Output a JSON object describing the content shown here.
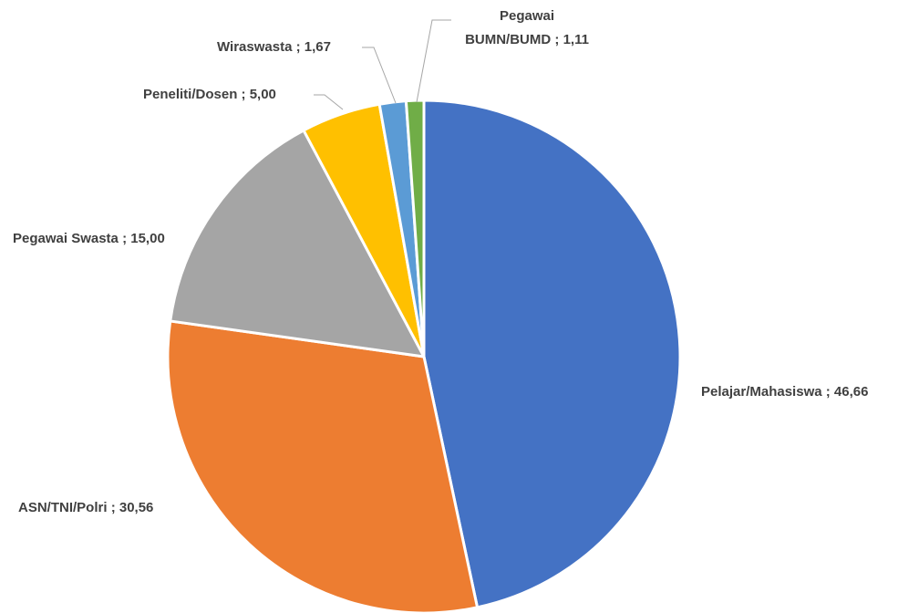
{
  "chart_data": {
    "type": "pie",
    "categories": [
      "Pelajar/Mahasiswa",
      "ASN/TNI/Polri",
      "Pegawai Swasta",
      "Peneliti/Dosen",
      "Wiraswasta",
      "Pegawai BUMN/BUMD"
    ],
    "values": [
      46.66,
      30.56,
      15.0,
      5.0,
      1.67,
      1.11
    ],
    "value_labels": [
      "46,66",
      "30,56",
      "15,00",
      "5,00",
      "1,67",
      "1,11"
    ],
    "colors": [
      "#4472c4",
      "#ed7d31",
      "#a5a5a5",
      "#ffc000",
      "#5b9bd5",
      "#70ad47"
    ]
  }
}
